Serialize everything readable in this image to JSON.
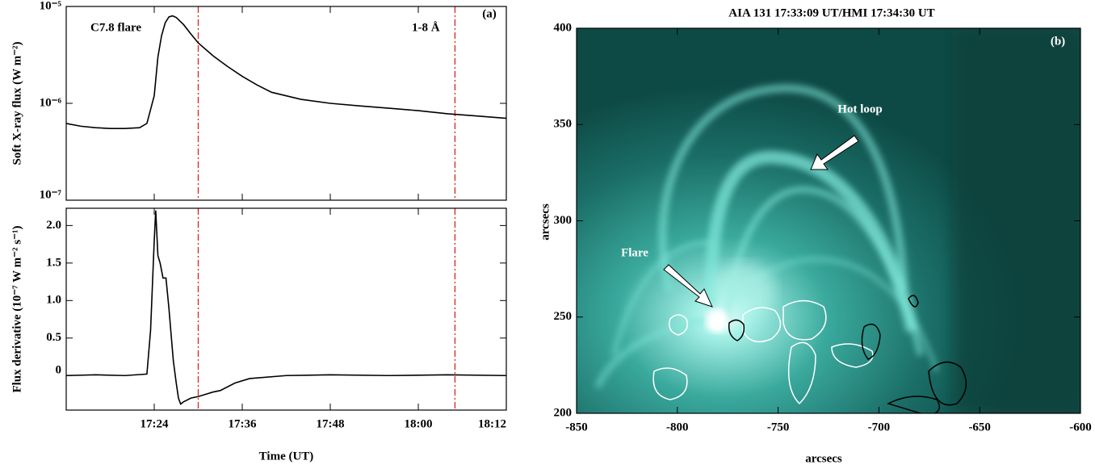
{
  "chart_data": [
    {
      "type": "line",
      "yscale": "log",
      "ylabel": "Soft X-ray flux (W m⁻²)",
      "annotation_left": "C7.8 flare",
      "annotation_right": "1-8 Å",
      "panel_label": "(a)",
      "xlim": [
        1032,
        1092
      ],
      "xticks": [
        1044,
        1056,
        1068,
        1080,
        1092
      ],
      "ylim": [
        1e-07,
        1e-05
      ],
      "yticks": [
        {
          "value": 1e-07,
          "label": "10⁻⁷"
        },
        {
          "value": 1e-06,
          "label": "10⁻⁶"
        },
        {
          "value": 1e-05,
          "label": "10⁻⁵"
        }
      ],
      "vlines": [
        1050,
        1085
      ],
      "vline_color": "#e0201b",
      "series": [
        {
          "color": "#000000",
          "x": [
            1032,
            1034,
            1036,
            1038,
            1040,
            1042,
            1043,
            1044,
            1044.5,
            1045,
            1045.5,
            1046,
            1046.5,
            1047,
            1048,
            1049,
            1050,
            1052,
            1054,
            1056,
            1058,
            1060,
            1064,
            1068,
            1072,
            1076,
            1080,
            1084,
            1088,
            1092
          ],
          "values": [
            6.2e-07,
            5.8e-07,
            5.6e-07,
            5.5e-07,
            5.5e-07,
            5.6e-07,
            6.2e-07,
            1.2e-06,
            3e-06,
            5e-06,
            6.8e-06,
            7.8e-06,
            8e-06,
            7.7e-06,
            6.5e-06,
            5.2e-06,
            4.2e-06,
            3.1e-06,
            2.4e-06,
            1.9e-06,
            1.55e-06,
            1.3e-06,
            1.1e-06,
            1e-06,
            9.4e-07,
            8.9e-07,
            8.4e-07,
            7.8e-07,
            7.4e-07,
            7e-07
          ]
        }
      ]
    },
    {
      "type": "line",
      "ylabel": "Flux derivative (10⁻⁷ W m⁻² s⁻¹)",
      "xlabel": "Time (UT)",
      "xlim": [
        1032,
        1092
      ],
      "xticks": [
        {
          "value": 1044,
          "label": "17:24"
        },
        {
          "value": 1056,
          "label": "17:36"
        },
        {
          "value": 1068,
          "label": "17:48"
        },
        {
          "value": 1080,
          "label": "18:00"
        },
        {
          "value": 1092,
          "label": "18:12"
        }
      ],
      "ylim": [
        -0.46,
        2.23
      ],
      "yticks": [
        0,
        0.5,
        {
          "value": 1,
          "label": "1.0"
        },
        1.5,
        {
          "value": 2,
          "label": "2.0"
        }
      ],
      "vlines": [
        1050,
        1085
      ],
      "vline_color": "#e0201b",
      "series": [
        {
          "color": "#000000",
          "x": [
            1032,
            1036,
            1040,
            1043,
            1043.5,
            1044,
            1044.2,
            1044.5,
            1044.8,
            1045.2,
            1045.6,
            1046,
            1046.3,
            1046.6,
            1047,
            1047.3,
            1047.6,
            1048,
            1049,
            1050,
            1051,
            1052,
            1053,
            1055,
            1057,
            1062,
            1068,
            1076,
            1084,
            1092
          ],
          "values": [
            0,
            0.01,
            0,
            0.02,
            0.6,
            1.8,
            2.2,
            1.6,
            1.5,
            1.3,
            1.3,
            0.9,
            0.55,
            0.2,
            -0.1,
            -0.3,
            -0.38,
            -0.35,
            -0.3,
            -0.28,
            -0.25,
            -0.22,
            -0.2,
            -0.1,
            -0.04,
            0,
            0.01,
            0,
            0.01,
            0
          ]
        }
      ]
    },
    {
      "type": "image",
      "title": "AIA 131 17:33:09 UT/HMI 17:34:30 UT",
      "xlabel": "arcsecs",
      "ylabel": "arcsecs",
      "annotations": [
        "Hot loop",
        "Flare"
      ],
      "panel_label": "(b)",
      "xlim": [
        -850,
        -600
      ],
      "xticks": [
        -850,
        -800,
        -750,
        -700,
        -650,
        -600
      ],
      "ylim": [
        200,
        400
      ],
      "yticks": [
        200,
        250,
        300,
        350,
        400
      ]
    }
  ]
}
